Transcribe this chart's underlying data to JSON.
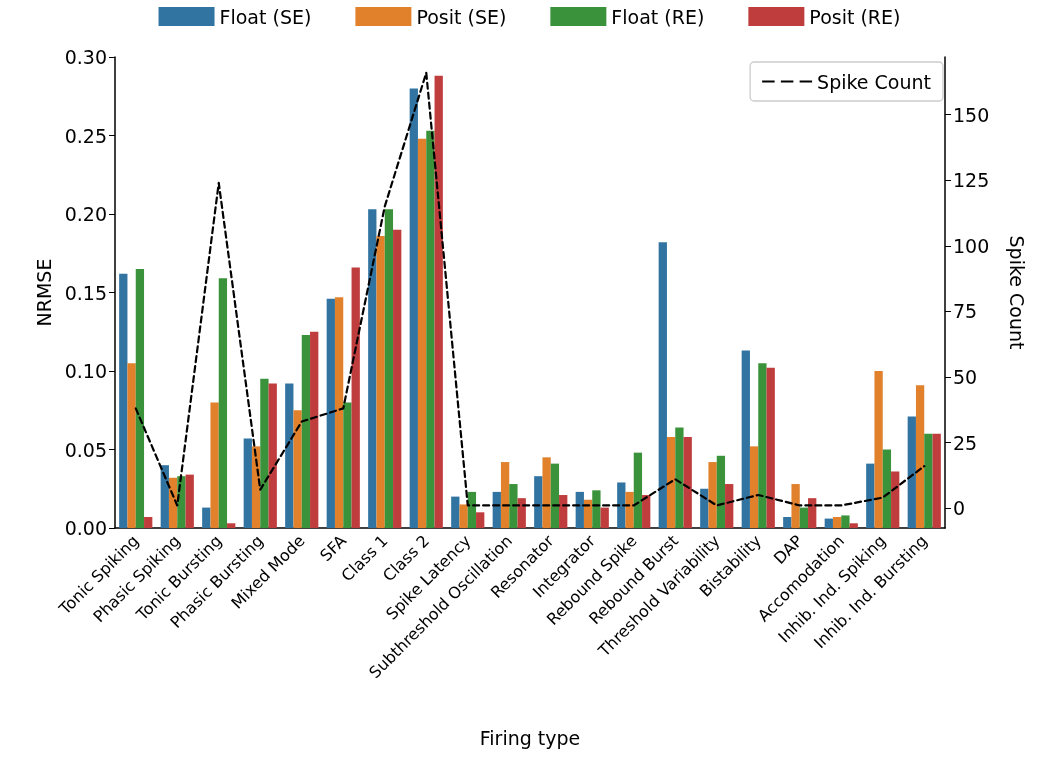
{
  "chart_data": {
    "type": "bar",
    "xlabel": "Firing type",
    "ylabel": "NRMSE",
    "y2label": "Spike Count",
    "categories": [
      "Tonic Spiking",
      "Phasic Spiking",
      "Tonic Bursting",
      "Phasic Bursting",
      "Mixed Mode",
      "SFA",
      "Class 1",
      "Class 2",
      "Spike Latency",
      "Subthreshold Oscillation",
      "Resonator",
      "Integrator",
      "Rebound Spike",
      "Rebound Burst",
      "Threshold Variability",
      "Bistability",
      "DAP",
      "Accomodation",
      "Inhib. Ind. Spiking",
      "Inhib. Ind. Bursting"
    ],
    "series": [
      {
        "name": "Float (SE)",
        "color": "#3274a1",
        "values": [
          0.162,
          0.04,
          0.013,
          0.057,
          0.092,
          0.146,
          0.203,
          0.28,
          0.02,
          0.023,
          0.033,
          0.023,
          0.029,
          0.182,
          0.025,
          0.113,
          0.007,
          0.006,
          0.041,
          0.071
        ]
      },
      {
        "name": "Posit (SE)",
        "color": "#e1812c",
        "values": [
          0.105,
          0.032,
          0.08,
          0.052,
          0.075,
          0.147,
          0.186,
          0.248,
          0.015,
          0.042,
          0.045,
          0.018,
          0.023,
          0.058,
          0.042,
          0.052,
          0.028,
          0.007,
          0.1,
          0.091
        ]
      },
      {
        "name": "Float (RE)",
        "color": "#3a923a",
        "values": [
          0.165,
          0.033,
          0.159,
          0.095,
          0.123,
          0.08,
          0.203,
          0.253,
          0.023,
          0.028,
          0.041,
          0.024,
          0.048,
          0.064,
          0.046,
          0.105,
          0.013,
          0.008,
          0.05,
          0.06
        ]
      },
      {
        "name": "Posit (RE)",
        "color": "#c03d3e",
        "values": [
          0.007,
          0.034,
          0.003,
          0.092,
          0.125,
          0.166,
          0.19,
          0.288,
          0.01,
          0.019,
          0.021,
          0.013,
          0.021,
          0.058,
          0.028,
          0.102,
          0.019,
          0.003,
          0.036,
          0.06
        ]
      },
      {
        "name": "Spike Count",
        "type": "line",
        "axis": "y2",
        "color": "#000000",
        "line_style": "dashed",
        "marker": "none",
        "values": [
          38,
          1,
          124,
          7,
          33,
          38,
          115,
          166,
          1,
          1,
          1,
          1,
          1,
          11,
          1,
          5,
          1,
          1,
          4,
          16
        ]
      }
    ],
    "ylim": [
      0,
      0.3
    ],
    "yticks": [
      {
        "value": 0,
        "label": "0.00"
      },
      {
        "value": 0.05,
        "label": "0.05"
      },
      {
        "value": 0.1,
        "label": "0.10"
      },
      {
        "value": 0.15,
        "label": "0.15"
      },
      {
        "value": 0.2,
        "label": "0.20"
      },
      {
        "value": 0.25,
        "label": "0.25"
      },
      {
        "value": 0.3,
        "label": "0.30"
      }
    ],
    "y2lim": [
      -7.6,
      172
    ],
    "y2ticks": [
      0,
      25,
      50,
      75,
      100,
      125,
      150
    ],
    "grid": false,
    "legend": "top"
  }
}
